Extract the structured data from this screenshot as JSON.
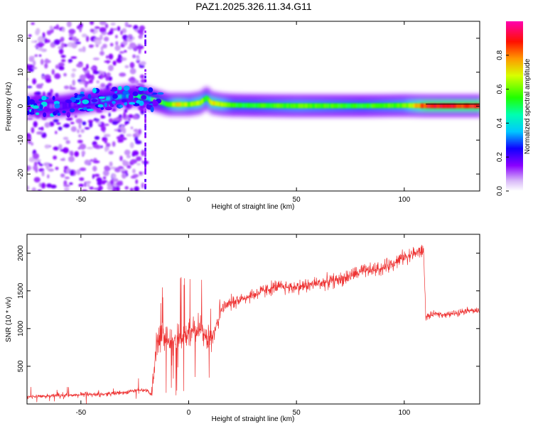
{
  "title": "PAZ1.2025.326.11.34.G11",
  "chart_data": [
    {
      "type": "heatmap",
      "xlabel": "Height of straight line (km)",
      "ylabel": "Frequency (Hz)",
      "xlim": [
        -75,
        135
      ],
      "ylim": [
        -25,
        25
      ],
      "x_ticks": [
        -50,
        0,
        50,
        100
      ],
      "y_ticks": [
        -20,
        -10,
        0,
        10,
        20
      ],
      "ridge": {
        "x": [
          -75,
          -60,
          -50,
          -40,
          -30,
          -25,
          -20,
          -15,
          -10,
          -5,
          0,
          5,
          8,
          10,
          15,
          20,
          30,
          50,
          80,
          100,
          110,
          135
        ],
        "freq": [
          0,
          0,
          1,
          2,
          3,
          3,
          2.5,
          1.5,
          0.5,
          0.5,
          0.5,
          1,
          2.5,
          1,
          0.5,
          0.3,
          0.2,
          0.1,
          0.1,
          0.2,
          0.1,
          0.1
        ],
        "amplitude": [
          0.1,
          0.15,
          0.2,
          0.3,
          0.35,
          0.4,
          0.45,
          0.5,
          0.55,
          0.75,
          0.6,
          0.7,
          0.55,
          0.75,
          0.65,
          0.55,
          0.55,
          0.6,
          0.55,
          0.6,
          0.9,
          0.9
        ]
      },
      "noise_region_km": [
        -75,
        -20
      ],
      "colorbar": {
        "label": "Normalized spectral amplitude",
        "range": [
          0,
          1
        ],
        "ticks": [
          "0.0",
          "0.2",
          "0.4",
          "0.6",
          "0.8"
        ]
      }
    },
    {
      "type": "line",
      "xlabel": "Height of straight line (km)",
      "ylabel": "SNR (10 * v/v)",
      "xlim": [
        -75,
        135
      ],
      "ylim": [
        0,
        2250
      ],
      "x_ticks": [
        -50,
        0,
        50,
        100
      ],
      "y_ticks": [
        500,
        1000,
        1500,
        2000
      ],
      "color": "#ee3333",
      "series": {
        "name": "SNR",
        "x": [
          -75,
          -60,
          -50,
          -40,
          -30,
          -25,
          -20,
          -17,
          -15,
          -12,
          -10,
          -5,
          0,
          5,
          10,
          15,
          20,
          30,
          40,
          50,
          60,
          70,
          80,
          90,
          100,
          105,
          109,
          110,
          115,
          120,
          130,
          135
        ],
        "y": [
          100,
          110,
          120,
          130,
          150,
          180,
          190,
          120,
          800,
          900,
          800,
          900,
          950,
          1000,
          850,
          1250,
          1350,
          1450,
          1550,
          1550,
          1600,
          1650,
          1750,
          1800,
          1950,
          2000,
          2030,
          1150,
          1200,
          1180,
          1250,
          1220
        ]
      }
    }
  ]
}
